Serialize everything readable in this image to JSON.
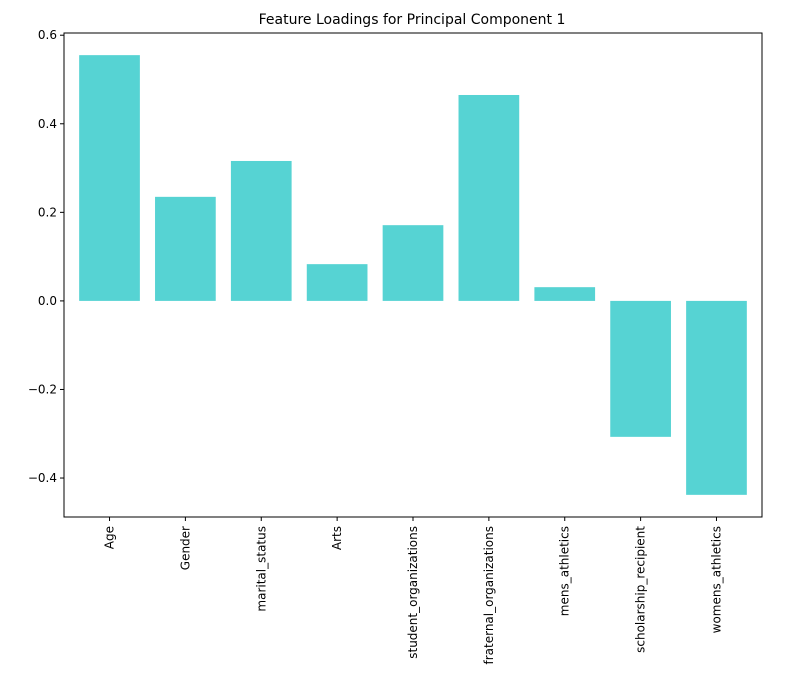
{
  "chart_data": {
    "type": "bar",
    "title": "Feature Loadings for Principal Component 1",
    "xlabel": "",
    "ylabel": "",
    "categories": [
      "Age",
      "Gender",
      "marital_status",
      "Arts",
      "student_organizations",
      "fraternal_organizations",
      "mens_athletics",
      "scholarship_recipient",
      "womens_athletics"
    ],
    "values": [
      0.555,
      0.235,
      0.316,
      0.083,
      0.171,
      0.465,
      0.031,
      -0.307,
      -0.438
    ],
    "ylim": [
      -0.488,
      0.605
    ],
    "yticks": [
      -0.4,
      -0.2,
      0.0,
      0.2,
      0.4,
      0.6
    ],
    "ytick_labels": [
      "−0.4",
      "−0.2",
      "0.0",
      "0.2",
      "0.4",
      "0.6"
    ],
    "bar_color": "#56d3d3",
    "grid": false,
    "legend": "none"
  }
}
